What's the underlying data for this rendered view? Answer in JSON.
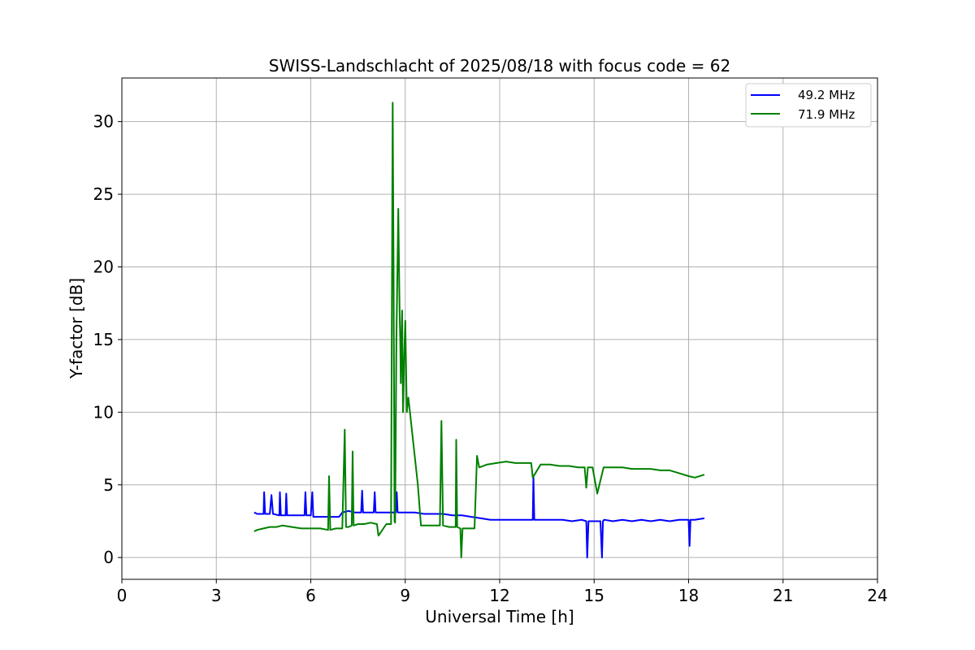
{
  "chart_data": {
    "type": "line",
    "title": "SWISS-Landschlacht of 2025/08/18 with focus code = 62",
    "xlabel": "Universal Time [h]",
    "ylabel": "Y-factor [dB]",
    "xlim": [
      0,
      24
    ],
    "ylim": [
      -1.5,
      33
    ],
    "xticks": [
      0,
      3,
      6,
      9,
      12,
      15,
      18,
      21,
      24
    ],
    "yticks": [
      0,
      5,
      10,
      15,
      20,
      25,
      30
    ],
    "grid": true,
    "legend_position": "top-right",
    "series": [
      {
        "name": "49.2 MHz",
        "color": "#0000ff",
        "x": [
          4.2,
          4.3,
          4.5,
          4.52,
          4.55,
          4.7,
          4.75,
          4.8,
          5.0,
          5.02,
          5.05,
          5.2,
          5.22,
          5.25,
          5.5,
          5.8,
          5.83,
          5.86,
          6.0,
          6.05,
          6.08,
          6.3,
          6.6,
          6.9,
          7.0,
          7.2,
          7.4,
          7.6,
          7.63,
          7.66,
          7.8,
          8.0,
          8.03,
          8.06,
          8.2,
          8.4,
          8.7,
          8.73,
          8.76,
          9.0,
          9.3,
          9.6,
          9.9,
          10.2,
          10.5,
          10.8,
          11.1,
          11.4,
          11.7,
          12.0,
          12.3,
          12.6,
          12.9,
          13.05,
          13.07,
          13.1,
          13.4,
          13.7,
          14.0,
          14.3,
          14.6,
          14.75,
          14.78,
          14.82,
          15.0,
          15.2,
          15.25,
          15.28,
          15.32,
          15.6,
          15.9,
          16.2,
          16.5,
          16.8,
          17.1,
          17.4,
          17.7,
          18.0,
          18.03,
          18.06,
          18.2,
          18.5
        ],
        "values": [
          3.1,
          3.0,
          3.0,
          4.5,
          3.0,
          3.0,
          4.3,
          3.0,
          2.9,
          4.5,
          2.9,
          2.9,
          4.4,
          2.9,
          2.9,
          2.9,
          4.5,
          2.9,
          2.9,
          4.5,
          2.8,
          2.8,
          2.8,
          2.8,
          3.1,
          3.2,
          3.1,
          3.1,
          4.6,
          3.1,
          3.1,
          3.1,
          4.5,
          3.1,
          3.1,
          3.1,
          3.1,
          4.5,
          3.1,
          3.1,
          3.1,
          3.0,
          3.0,
          3.0,
          2.9,
          2.9,
          2.8,
          2.7,
          2.6,
          2.6,
          2.6,
          2.6,
          2.6,
          2.6,
          5.6,
          2.6,
          2.6,
          2.6,
          2.6,
          2.5,
          2.6,
          2.5,
          0.0,
          2.5,
          2.5,
          2.5,
          0.0,
          2.5,
          2.6,
          2.5,
          2.6,
          2.5,
          2.6,
          2.5,
          2.6,
          2.5,
          2.6,
          2.6,
          0.8,
          2.6,
          2.6,
          2.7
        ]
      },
      {
        "name": "71.9 MHz",
        "color": "#008000",
        "x": [
          4.2,
          4.3,
          4.5,
          4.7,
          4.9,
          5.1,
          5.4,
          5.7,
          6.0,
          6.3,
          6.55,
          6.58,
          6.62,
          6.8,
          7.0,
          7.08,
          7.12,
          7.2,
          7.3,
          7.33,
          7.36,
          7.5,
          7.7,
          7.9,
          8.1,
          8.15,
          8.4,
          8.55,
          8.6,
          8.63,
          8.66,
          8.68,
          8.72,
          8.78,
          8.82,
          8.84,
          8.86,
          8.9,
          8.93,
          8.97,
          9.0,
          9.05,
          9.1,
          9.2,
          9.3,
          9.4,
          9.5,
          9.7,
          9.9,
          10.1,
          10.15,
          10.2,
          10.4,
          10.6,
          10.62,
          10.65,
          10.75,
          10.78,
          10.82,
          11.0,
          11.2,
          11.28,
          11.35,
          11.6,
          11.9,
          12.2,
          12.5,
          12.8,
          13.0,
          13.05,
          13.3,
          13.6,
          13.9,
          14.2,
          14.5,
          14.7,
          14.75,
          14.8,
          14.95,
          15.1,
          15.3,
          15.6,
          15.9,
          16.2,
          16.5,
          16.8,
          17.1,
          17.4,
          17.7,
          18.0,
          18.2,
          18.5
        ],
        "values": [
          1.8,
          1.9,
          2.0,
          2.1,
          2.1,
          2.2,
          2.1,
          2.0,
          2.0,
          2.0,
          1.9,
          5.6,
          1.9,
          2.0,
          2.0,
          8.8,
          2.1,
          2.1,
          2.2,
          7.3,
          2.2,
          2.3,
          2.3,
          2.4,
          2.3,
          1.5,
          2.3,
          2.3,
          31.3,
          20.0,
          2.5,
          2.4,
          15.0,
          24.0,
          17.0,
          15.0,
          12.0,
          17.0,
          10.0,
          14.0,
          16.3,
          10.0,
          11.0,
          9.0,
          7.0,
          5.0,
          2.2,
          2.2,
          2.2,
          2.2,
          9.4,
          2.2,
          2.1,
          2.1,
          8.1,
          2.1,
          2.0,
          0.0,
          2.0,
          2.0,
          2.0,
          7.0,
          6.2,
          6.4,
          6.5,
          6.6,
          6.5,
          6.5,
          6.5,
          5.5,
          6.4,
          6.4,
          6.3,
          6.3,
          6.2,
          6.2,
          4.8,
          6.2,
          6.2,
          4.4,
          6.2,
          6.2,
          6.2,
          6.1,
          6.1,
          6.1,
          6.0,
          6.0,
          5.8,
          5.6,
          5.5,
          5.7
        ]
      }
    ]
  }
}
